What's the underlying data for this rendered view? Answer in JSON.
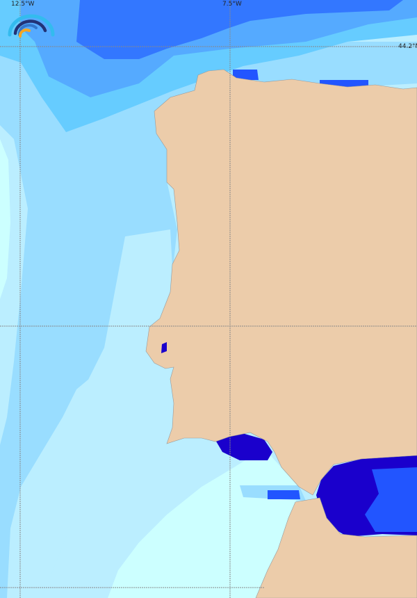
{
  "map": {
    "grid_labels": {
      "lon_west": "12.5°W",
      "lon_east": "7.5°W",
      "lat_top": "44.2°N"
    },
    "colors": {
      "land": "#ecccaa",
      "ocean_palest": "#ccffff",
      "ocean_pale": "#bbeeff",
      "ocean_light": "#99ddff",
      "ocean_mid": "#66ccff",
      "ocean_blue": "#55aaff",
      "ocean_deep": "#3377ff",
      "sea_dark": "#1a00cc",
      "sea_bright": "#2255ff",
      "grid": "#888888"
    },
    "logo_icon": "rainbow-arc-logo"
  }
}
